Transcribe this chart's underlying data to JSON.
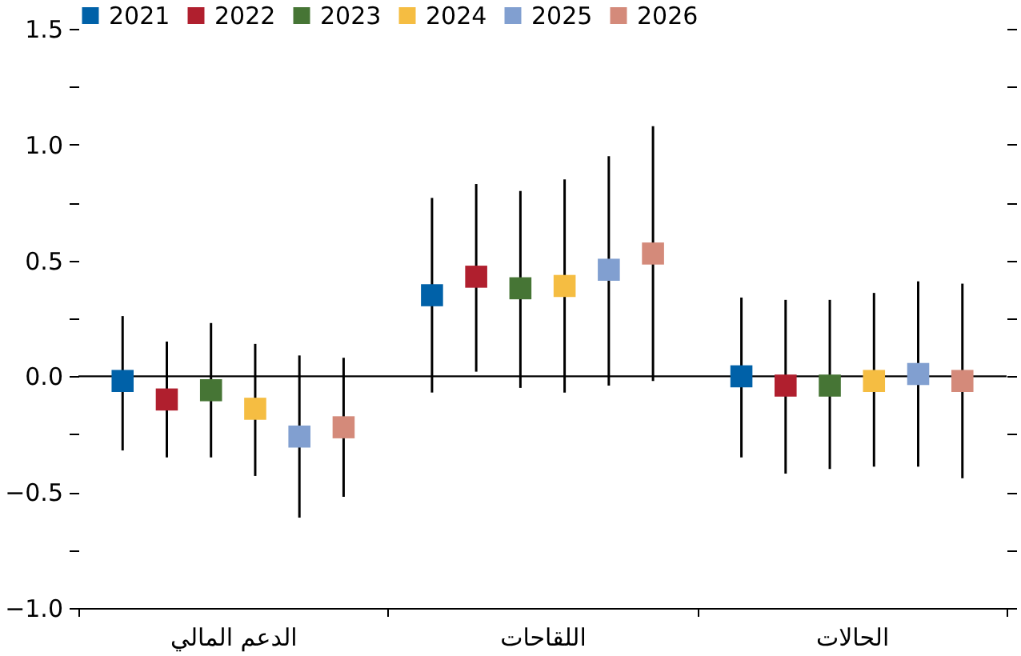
{
  "chart_data": {
    "type": "scatter",
    "categories": [
      "الدعم المالي",
      "اللقاحات",
      "الحالات"
    ],
    "series": [
      {
        "name": "2021",
        "color": "#0061a8",
        "values": [
          -0.02,
          0.35,
          0.0
        ],
        "errors": [
          [
            -0.32,
            0.26
          ],
          [
            -0.07,
            0.77
          ],
          [
            -0.35,
            0.34
          ]
        ]
      },
      {
        "name": "2022",
        "color": "#b01f2e",
        "values": [
          -0.1,
          0.43,
          -0.04
        ],
        "errors": [
          [
            -0.35,
            0.15
          ],
          [
            0.02,
            0.83
          ],
          [
            -0.42,
            0.33
          ]
        ]
      },
      {
        "name": "2023",
        "color": "#467535",
        "values": [
          -0.06,
          0.38,
          -0.04
        ],
        "errors": [
          [
            -0.35,
            0.23
          ],
          [
            -0.05,
            0.8
          ],
          [
            -0.4,
            0.33
          ]
        ]
      },
      {
        "name": "2024",
        "color": "#f5bd42",
        "values": [
          -0.14,
          0.39,
          -0.02
        ],
        "errors": [
          [
            -0.43,
            0.14
          ],
          [
            -0.07,
            0.85
          ],
          [
            -0.39,
            0.36
          ]
        ]
      },
      {
        "name": "2025",
        "color": "#819fd0",
        "values": [
          -0.26,
          0.46,
          0.01
        ],
        "errors": [
          [
            -0.61,
            0.09
          ],
          [
            -0.04,
            0.95
          ],
          [
            -0.39,
            0.41
          ]
        ]
      },
      {
        "name": "2026",
        "color": "#d48a7a",
        "values": [
          -0.22,
          0.53,
          -0.02
        ],
        "errors": [
          [
            -0.52,
            0.08
          ],
          [
            -0.02,
            1.08
          ],
          [
            -0.44,
            0.4
          ]
        ]
      }
    ],
    "ylim": [
      -1.0,
      1.5
    ],
    "yticks": [
      {
        "value": -1.0,
        "label": "−1.0"
      },
      {
        "value": -0.75,
        "label": null
      },
      {
        "value": -0.5,
        "label": "−0.5"
      },
      {
        "value": -0.25,
        "label": null
      },
      {
        "value": 0.0,
        "label": "0.0"
      },
      {
        "value": 0.25,
        "label": null
      },
      {
        "value": 0.5,
        "label": "0.5"
      },
      {
        "value": 0.75,
        "label": null
      },
      {
        "value": 1.0,
        "label": "1.0"
      },
      {
        "value": 1.25,
        "label": null
      },
      {
        "value": 1.5,
        "label": "1.5"
      }
    ],
    "ref_lines": [
      {
        "axis": "y",
        "value": 0,
        "color": "#000000"
      }
    ],
    "marker": "square",
    "legend": "top",
    "grid": false
  }
}
